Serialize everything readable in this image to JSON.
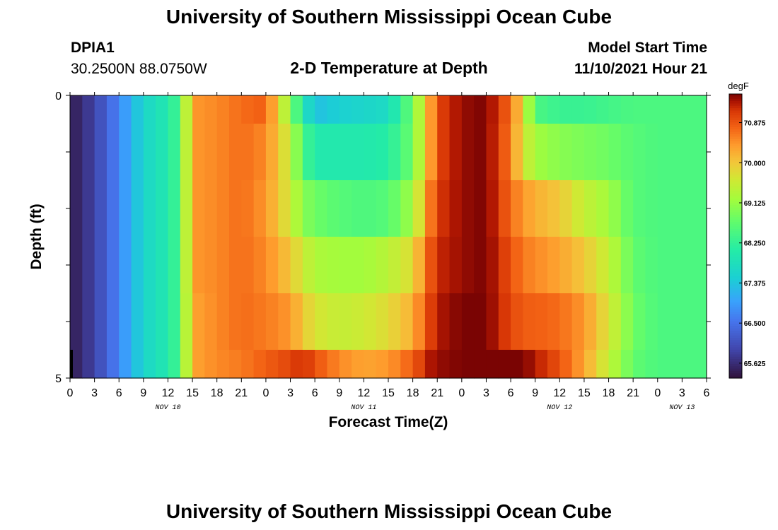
{
  "header": {
    "title": "University of Southern Mississippi Ocean Cube",
    "station_id": "DPIA1",
    "station_coords": "30.2500N  88.0750W",
    "chart_title": "2-D Temperature at Depth",
    "model_start_label": "Model Start Time",
    "model_start_value": "11/10/2021 Hour 21"
  },
  "footer": {
    "title": "University of Southern Mississippi Ocean Cube"
  },
  "chart_data": {
    "type": "heatmap",
    "title": "2-D Temperature at Depth",
    "xlabel": "Forecast Time(Z)",
    "ylabel": "Depth (ft)",
    "colorbar_unit": "degF",
    "colorbar_ticks": [
      "70.875",
      "70.000",
      "69.125",
      "68.250",
      "67.375",
      "66.500",
      "65.625"
    ],
    "colorbar_range": [
      65.3,
      71.5
    ],
    "ylim": [
      0,
      5
    ],
    "y_tick_labels": [
      "0",
      "5"
    ],
    "x_tick_labels": [
      "0",
      "3",
      "6",
      "9",
      "12",
      "15",
      "18",
      "21",
      "0",
      "3",
      "6",
      "9",
      "12",
      "15",
      "18",
      "21",
      "0",
      "3",
      "6",
      "9",
      "12",
      "15",
      "18",
      "21",
      "0",
      "3",
      "6"
    ],
    "date_labels": [
      "NOV 10",
      "NOV 11",
      "NOV 12",
      "NOV 13"
    ],
    "x_range_hours": [
      0,
      78
    ],
    "depth_levels_ft": [
      0.25,
      0.75,
      1.75,
      2.75,
      3.75,
      4.75
    ],
    "time_hours": [
      0,
      3,
      6,
      9,
      12,
      13.5,
      15,
      18,
      21,
      24,
      27,
      28.5,
      30,
      33,
      36,
      39,
      42,
      44,
      45,
      48,
      51,
      54,
      55.5,
      57,
      60,
      63,
      66,
      69,
      72,
      75,
      78
    ],
    "temperatures_degF": [
      [
        65.4,
        65.9,
        66.7,
        67.6,
        68.0,
        68.5,
        70.4,
        70.5,
        70.7,
        70.8,
        69.0,
        68.0,
        67.3,
        67.5,
        67.6,
        67.7,
        68.8,
        70.2,
        71.0,
        71.4,
        71.5,
        70.7,
        69.8,
        68.5,
        68.3,
        68.3,
        68.4,
        68.5,
        68.5,
        68.5,
        68.5
      ],
      [
        65.4,
        65.9,
        66.7,
        67.6,
        68.0,
        68.5,
        70.4,
        70.5,
        70.7,
        70.5,
        69.5,
        68.5,
        68.0,
        68.0,
        68.0,
        68.1,
        68.8,
        70.2,
        71.0,
        71.4,
        71.5,
        70.6,
        69.7,
        69.2,
        69.0,
        68.9,
        68.8,
        68.6,
        68.5,
        68.5,
        68.5
      ],
      [
        65.4,
        65.9,
        66.7,
        67.6,
        68.0,
        68.5,
        70.4,
        70.5,
        70.7,
        70.4,
        69.6,
        69.0,
        68.8,
        68.6,
        68.5,
        68.6,
        69.2,
        70.5,
        71.1,
        71.4,
        71.5,
        70.7,
        70.4,
        70.2,
        70.0,
        69.5,
        69.2,
        68.6,
        68.5,
        68.5,
        68.5
      ],
      [
        65.4,
        65.9,
        66.7,
        67.6,
        68.0,
        68.5,
        70.4,
        70.5,
        70.7,
        70.5,
        70.0,
        69.6,
        69.3,
        69.2,
        69.2,
        69.4,
        69.8,
        70.8,
        71.2,
        71.4,
        71.5,
        70.9,
        70.6,
        70.5,
        70.3,
        70.0,
        69.5,
        68.7,
        68.5,
        68.5,
        68.5
      ],
      [
        65.4,
        65.9,
        66.7,
        67.6,
        68.0,
        68.5,
        70.3,
        70.5,
        70.7,
        70.6,
        70.4,
        70.0,
        69.7,
        69.5,
        69.6,
        69.8,
        70.2,
        71.0,
        71.3,
        71.5,
        71.5,
        71.0,
        70.8,
        70.8,
        70.7,
        70.4,
        69.7,
        68.8,
        68.5,
        68.5,
        68.5
      ],
      [
        65.4,
        65.9,
        66.7,
        67.6,
        68.0,
        68.5,
        70.3,
        70.5,
        70.6,
        70.8,
        71.0,
        71.2,
        70.9,
        70.5,
        70.3,
        70.4,
        70.8,
        71.3,
        71.4,
        71.5,
        71.6,
        71.6,
        71.5,
        71.3,
        70.9,
        70.3,
        69.5,
        68.7,
        68.5,
        68.5,
        68.5
      ]
    ]
  }
}
